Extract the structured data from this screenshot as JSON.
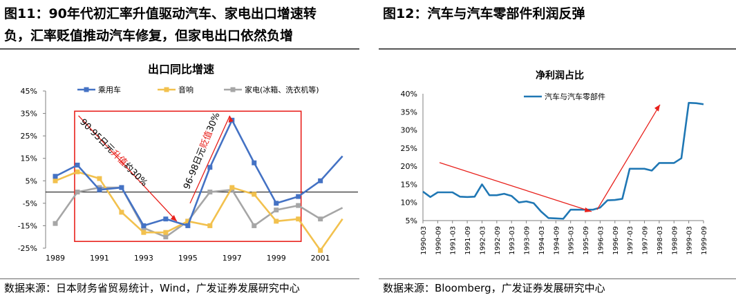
{
  "left_panel": {
    "figure_title_line1": "图11：90年代初汇率升值驱动汽车、家电出口增速转",
    "figure_title_line2": "负，汇率贬值推动汽车修复，但家电出口依然负增",
    "source": "数据来源：日本财务省贸易统计，Wind，广发证券发展研究中心"
  },
  "right_panel": {
    "figure_title": "图12：汽车与汽车零部件利润反弹",
    "source": "数据来源：Bloomberg，广发证券发展研究中心"
  },
  "chart_data": [
    {
      "type": "line",
      "title": "出口同比增速",
      "xlabel": "",
      "ylabel": "",
      "x": [
        1989,
        1990,
        1991,
        1992,
        1993,
        1994,
        1995,
        1996,
        1997,
        1998,
        1999,
        2000,
        2001,
        2002
      ],
      "x_tick_labels": [
        "1989",
        "1991",
        "1993",
        "1995",
        "1997",
        "1999",
        "2001"
      ],
      "y_tick_labels": [
        "45%",
        "35%",
        "25%",
        "15%",
        "5%",
        "-5%",
        "-15%",
        "-25%"
      ],
      "ylim": [
        -25,
        45
      ],
      "grid": false,
      "legend_position": "top",
      "series": [
        {
          "name": "乘用车",
          "color": "#4472C4",
          "marker": "square",
          "x": [
            1989,
            1990,
            1991,
            1992,
            1993,
            1994,
            1995,
            1996,
            1997,
            1998,
            1999,
            2000,
            2001,
            2002
          ],
          "values": [
            7,
            12,
            1,
            2,
            -15,
            -12,
            -15,
            11,
            32,
            13,
            -5,
            -2,
            5,
            16
          ]
        },
        {
          "name": "音响",
          "color": "#F2C14E",
          "marker": "square",
          "x": [
            1989,
            1990,
            1991,
            1992,
            1993,
            1994,
            1995,
            1996,
            1997,
            1998,
            1999,
            2000,
            2001,
            2002
          ],
          "values": [
            5,
            9,
            6,
            -9,
            -18,
            -18,
            -13,
            -15,
            2,
            -1,
            -13,
            -12,
            -26,
            -12
          ]
        },
        {
          "name": "家电(冰箱、洗衣机等)",
          "color": "#A6A6A6",
          "marker": "square",
          "x": [
            1989,
            1990,
            1991,
            1992,
            1993,
            1994,
            1995,
            1996,
            1997,
            1998,
            1999,
            2000,
            2001,
            2002
          ],
          "values": [
            -14,
            0,
            2,
            2,
            -16,
            -20,
            -13,
            0,
            1,
            -15,
            -8,
            -6,
            -12,
            -7
          ]
        }
      ],
      "annotations": [
        {
          "text": "90-95日元",
          "highlight": "升值",
          "suffix": "约30%",
          "highlight_color": "#E8201B"
        },
        {
          "text": "96-98日元",
          "highlight": "贬值",
          "suffix": "30%",
          "highlight_color": "#E8201B"
        }
      ]
    },
    {
      "type": "line",
      "title": "净利润占比",
      "xlabel": "",
      "ylabel": "",
      "x_tick_labels": [
        "1990-03",
        "1990-09",
        "1991-03",
        "1991-09",
        "1992-03",
        "1992-09",
        "1993-03",
        "1993-09",
        "1994-03",
        "1994-09",
        "1995-03",
        "1995-09",
        "1996-03",
        "1996-09",
        "1997-03",
        "1997-09",
        "1998-03",
        "1998-09",
        "1999-03",
        "1999-09"
      ],
      "y_tick_labels": [
        "40%",
        "35%",
        "30%",
        "25%",
        "20%",
        "15%",
        "10%",
        "5%"
      ],
      "ylim": [
        5,
        40
      ],
      "grid": false,
      "legend_position": "top",
      "series": [
        {
          "name": "汽车与汽车零部件",
          "color": "#1F77B4",
          "values": [
            13,
            11.5,
            12.8,
            12.8,
            12.8,
            11.6,
            11.5,
            11.6,
            15,
            12,
            12,
            12.4,
            11.8,
            10,
            10.3,
            9.8,
            7.5,
            5.7,
            5.6,
            5.5,
            8,
            8,
            8,
            8,
            8.6,
            10.6,
            10.7,
            11,
            19.3,
            19.3,
            19.3,
            18.8,
            20.9,
            20.9,
            20.9,
            22.2,
            37.5,
            37.4,
            37.1
          ]
        }
      ]
    }
  ]
}
